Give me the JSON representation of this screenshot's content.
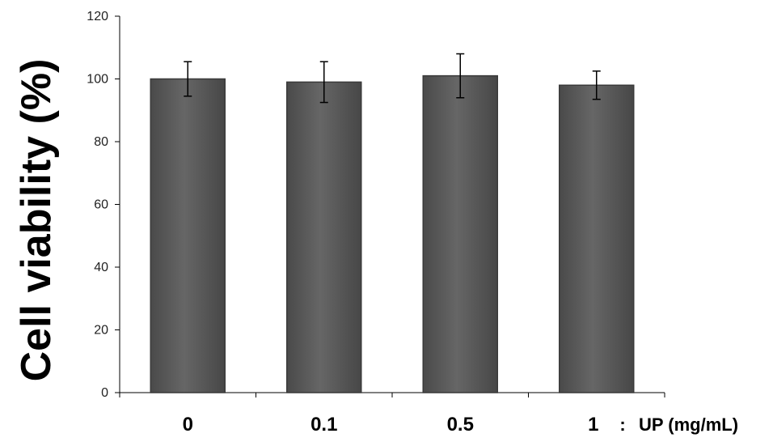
{
  "chart_data": {
    "type": "bar",
    "categories": [
      "0",
      "0.1",
      "0.5",
      "1"
    ],
    "values": [
      100,
      99,
      101,
      98
    ],
    "error": [
      5.5,
      6.5,
      7.0,
      4.5
    ],
    "ylabel": "Cell viability (%)",
    "xlabel": "UP (mg/mL)",
    "xlabel_prefix": ":",
    "ylim": [
      0,
      120
    ],
    "yticks": [
      0,
      20,
      40,
      60,
      80,
      100,
      120
    ],
    "grid": false,
    "legend": "none",
    "bar_color": "#555555",
    "bar_edge_color": "#3a3a3a"
  }
}
